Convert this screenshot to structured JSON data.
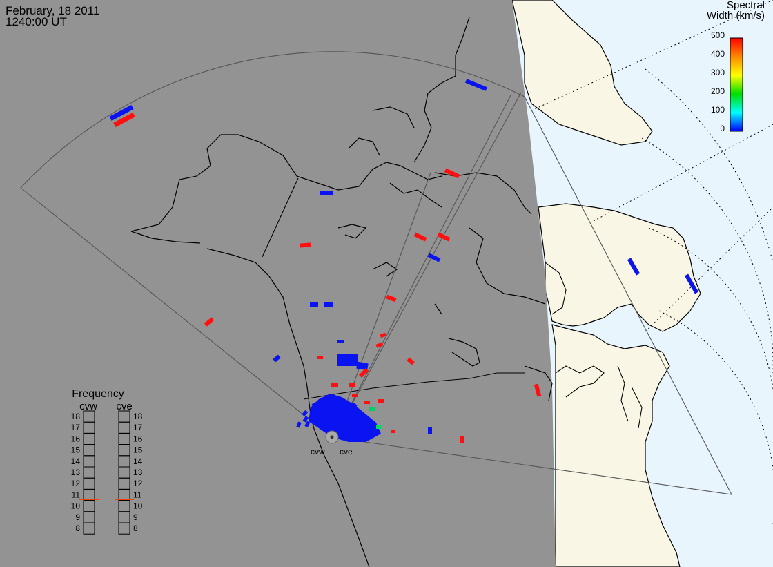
{
  "header": {
    "date": "February, 18 2011",
    "time": "1240:00 UT"
  },
  "colorbar": {
    "title_line1": "Spectral",
    "title_line2": "Width (km/s)",
    "ticks": [
      "500",
      "400",
      "300",
      "200",
      "100",
      "0"
    ],
    "gradient": [
      "#ff0000",
      "#ff8800",
      "#ffff00",
      "#00dd00",
      "#00ffff",
      "#0000ff"
    ]
  },
  "frequency_panel": {
    "title": "Frequency",
    "radars": [
      "cvw",
      "cve"
    ],
    "ticks": [
      "18",
      "17",
      "16",
      "15",
      "14",
      "13",
      "12",
      "11",
      "10",
      "9",
      "8"
    ],
    "marker_mhz": 10.6,
    "marker_color": "#ee4400"
  },
  "radar_labels": [
    "cvw",
    "cve"
  ],
  "colors": {
    "night": "#939393",
    "day_land": "#faf6e6",
    "day_ocean": "#e9f5fd",
    "low_width": "#0a14f0",
    "high_width": "#ff1010"
  }
}
